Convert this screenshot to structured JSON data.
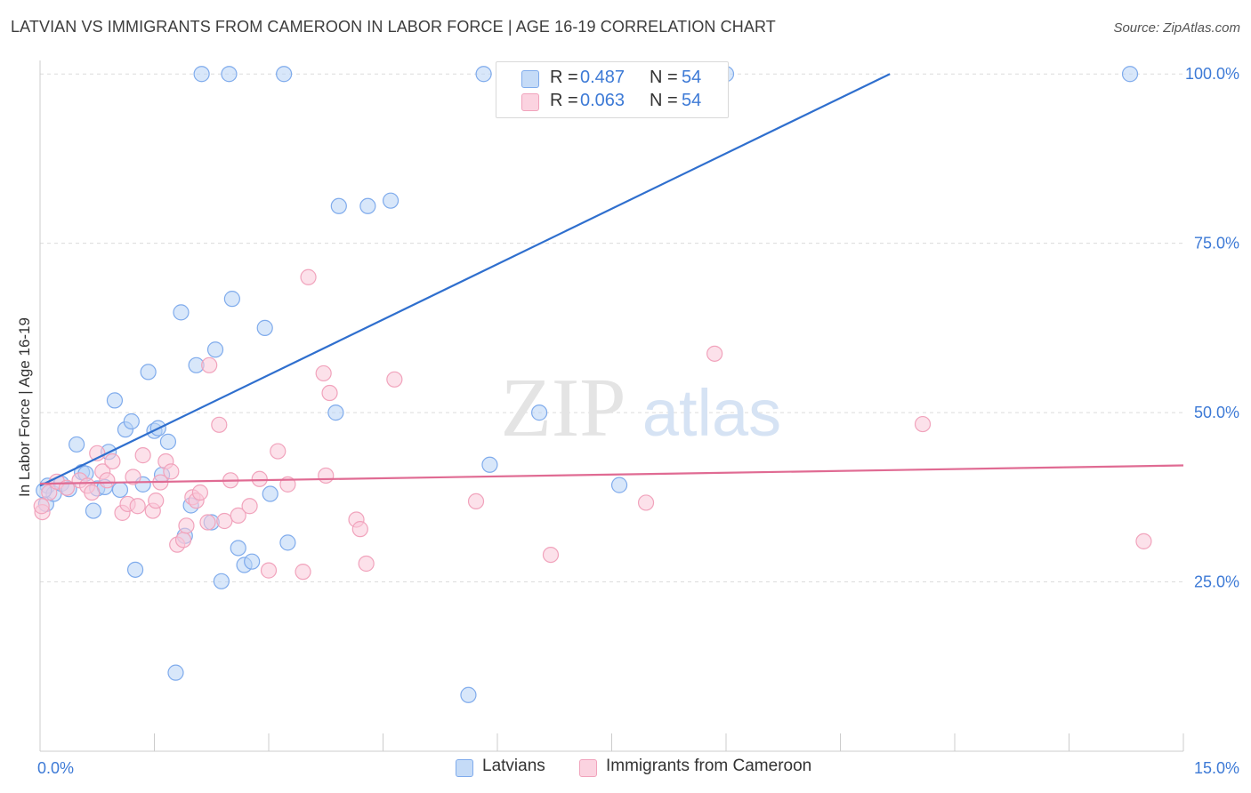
{
  "header": {
    "title": "LATVIAN VS IMMIGRANTS FROM CAMEROON IN LABOR FORCE | AGE 16-19 CORRELATION CHART",
    "source": "Source: ZipAtlas.com"
  },
  "watermark": {
    "zip": "ZIP",
    "atlas": "atlas"
  },
  "legend": {
    "rows": [
      {
        "r_label": "R =",
        "r_value": "0.487",
        "n_label": "N =",
        "n_value": "54",
        "color": "#a9c8f2"
      },
      {
        "r_label": "R =",
        "r_value": "0.063",
        "n_label": "N =",
        "n_value": "54",
        "color": "#f7b8cc"
      }
    ]
  },
  "bottom_legend": [
    {
      "label": "Latvians",
      "color": "#a9c8f2"
    },
    {
      "label": "Immigrants from Cameroon",
      "color": "#f7b8cc"
    }
  ],
  "chart_data": {
    "type": "scatter",
    "title": "LATVIAN VS IMMIGRANTS FROM CAMEROON IN LABOR FORCE | AGE 16-19 CORRELATION CHART",
    "xlabel": "",
    "ylabel": "In Labor Force | Age 16-19",
    "xlim": [
      0,
      15
    ],
    "ylim": [
      0,
      102
    ],
    "x_tick_labels": [
      {
        "value": 0,
        "label": "0.0%"
      },
      {
        "value": 15,
        "label": "15.0%"
      }
    ],
    "y_tick_labels": [
      {
        "value": 25,
        "label": "25.0%"
      },
      {
        "value": 50,
        "label": "50.0%"
      },
      {
        "value": 75,
        "label": "75.0%"
      },
      {
        "value": 100,
        "label": "100.0%"
      }
    ],
    "grid": true,
    "legend_position": "top-center",
    "series": [
      {
        "name": "Latvians",
        "color": "#7fabec",
        "fill": "#b8d3f5",
        "line_color": "#2f6fce",
        "trend": {
          "x": [
            0,
            15
          ],
          "y": [
            39.2,
            121.0
          ]
        },
        "points": [
          [
            0.08,
            36.5
          ],
          [
            0.1,
            39.2
          ],
          [
            0.18,
            38.0
          ],
          [
            0.28,
            39.5
          ],
          [
            0.38,
            38.7
          ],
          [
            0.48,
            45.3
          ],
          [
            0.55,
            41.2
          ],
          [
            0.6,
            41.0
          ],
          [
            0.7,
            35.5
          ],
          [
            0.75,
            38.8
          ],
          [
            0.85,
            39.0
          ],
          [
            0.9,
            44.2
          ],
          [
            0.98,
            51.8
          ],
          [
            1.05,
            38.6
          ],
          [
            1.12,
            47.5
          ],
          [
            1.2,
            48.7
          ],
          [
            1.25,
            26.8
          ],
          [
            1.35,
            39.4
          ],
          [
            1.42,
            56.0
          ],
          [
            1.5,
            47.3
          ],
          [
            1.55,
            47.7
          ],
          [
            1.6,
            40.8
          ],
          [
            1.68,
            45.7
          ],
          [
            1.78,
            11.6
          ],
          [
            1.85,
            64.8
          ],
          [
            1.9,
            31.8
          ],
          [
            1.98,
            36.3
          ],
          [
            2.05,
            57.0
          ],
          [
            2.12,
            100.0
          ],
          [
            2.25,
            33.8
          ],
          [
            2.3,
            59.3
          ],
          [
            2.38,
            25.1
          ],
          [
            2.48,
            100.0
          ],
          [
            2.52,
            66.8
          ],
          [
            2.6,
            30.0
          ],
          [
            2.68,
            27.5
          ],
          [
            2.78,
            28.0
          ],
          [
            2.95,
            62.5
          ],
          [
            3.02,
            38.0
          ],
          [
            3.2,
            100.0
          ],
          [
            3.25,
            30.8
          ],
          [
            3.88,
            50.0
          ],
          [
            3.92,
            80.5
          ],
          [
            4.3,
            80.5
          ],
          [
            4.6,
            81.3
          ],
          [
            5.62,
            8.3
          ],
          [
            5.82,
            100.0
          ],
          [
            5.9,
            42.3
          ],
          [
            6.15,
            100.0
          ],
          [
            6.55,
            50.0
          ],
          [
            7.6,
            39.3
          ],
          [
            9.0,
            100.0
          ],
          [
            14.3,
            100.0
          ],
          [
            0.05,
            38.5
          ]
        ]
      },
      {
        "name": "Immigrants from Cameroon",
        "color": "#f1a3bc",
        "fill": "#f9c9d8",
        "line_color": "#e06b93",
        "trend": {
          "x": [
            0,
            15
          ],
          "y": [
            39.5,
            42.2
          ]
        },
        "points": [
          [
            0.03,
            35.3
          ],
          [
            0.12,
            38.2
          ],
          [
            0.22,
            39.8
          ],
          [
            0.35,
            38.9
          ],
          [
            0.52,
            40.0
          ],
          [
            0.62,
            39.2
          ],
          [
            0.68,
            38.2
          ],
          [
            0.75,
            44.0
          ],
          [
            0.82,
            41.3
          ],
          [
            0.88,
            40.0
          ],
          [
            0.95,
            42.8
          ],
          [
            1.08,
            35.2
          ],
          [
            1.15,
            36.5
          ],
          [
            1.22,
            40.5
          ],
          [
            1.28,
            36.2
          ],
          [
            1.35,
            43.7
          ],
          [
            1.48,
            35.5
          ],
          [
            1.52,
            37.0
          ],
          [
            1.58,
            39.7
          ],
          [
            1.65,
            42.8
          ],
          [
            1.72,
            41.3
          ],
          [
            1.8,
            30.5
          ],
          [
            1.88,
            31.2
          ],
          [
            1.92,
            33.3
          ],
          [
            2.0,
            37.5
          ],
          [
            2.05,
            37.0
          ],
          [
            2.1,
            38.2
          ],
          [
            2.2,
            33.8
          ],
          [
            2.22,
            57.0
          ],
          [
            2.35,
            48.2
          ],
          [
            2.42,
            34.0
          ],
          [
            2.5,
            40.0
          ],
          [
            2.6,
            34.8
          ],
          [
            2.75,
            36.2
          ],
          [
            2.88,
            40.2
          ],
          [
            3.0,
            26.7
          ],
          [
            3.12,
            44.3
          ],
          [
            3.25,
            39.4
          ],
          [
            3.45,
            26.5
          ],
          [
            3.52,
            70.0
          ],
          [
            3.72,
            55.8
          ],
          [
            3.75,
            40.7
          ],
          [
            3.8,
            52.9
          ],
          [
            4.15,
            34.2
          ],
          [
            4.2,
            32.8
          ],
          [
            4.28,
            27.7
          ],
          [
            4.65,
            54.9
          ],
          [
            5.72,
            36.9
          ],
          [
            6.7,
            29.0
          ],
          [
            7.95,
            36.7
          ],
          [
            8.85,
            58.7
          ],
          [
            11.58,
            48.3
          ],
          [
            14.48,
            31.0
          ],
          [
            0.02,
            36.2
          ]
        ]
      }
    ]
  }
}
